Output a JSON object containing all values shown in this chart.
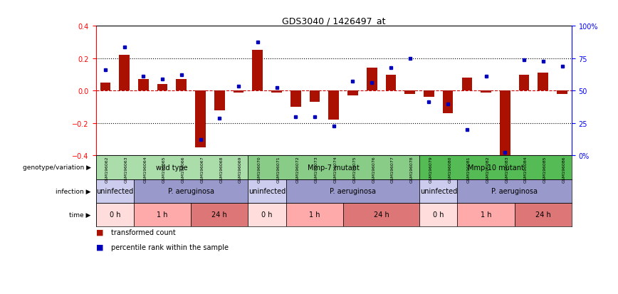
{
  "title": "GDS3040 / 1426497_at",
  "samples": [
    "GSM196062",
    "GSM196063",
    "GSM196064",
    "GSM196065",
    "GSM196066",
    "GSM196067",
    "GSM196068",
    "GSM196069",
    "GSM196070",
    "GSM196071",
    "GSM196072",
    "GSM196073",
    "GSM196074",
    "GSM196075",
    "GSM196076",
    "GSM196077",
    "GSM196078",
    "GSM196079",
    "GSM196080",
    "GSM196081",
    "GSM196082",
    "GSM196083",
    "GSM196084",
    "GSM196085",
    "GSM196086"
  ],
  "red_bars": [
    0.05,
    0.22,
    0.07,
    0.04,
    0.07,
    -0.35,
    -0.12,
    -0.01,
    0.25,
    -0.01,
    -0.1,
    -0.07,
    -0.18,
    -0.03,
    0.14,
    0.1,
    -0.02,
    -0.04,
    -0.14,
    0.08,
    -0.01,
    -0.42,
    0.1,
    0.11,
    -0.02
  ],
  "blue_dots": [
    0.13,
    0.27,
    0.09,
    0.07,
    0.1,
    -0.3,
    -0.17,
    0.03,
    0.3,
    0.02,
    -0.16,
    -0.16,
    -0.22,
    0.06,
    0.05,
    0.14,
    0.2,
    -0.07,
    -0.08,
    -0.24,
    0.09,
    -0.38,
    0.19,
    0.18,
    0.15
  ],
  "ylim": [
    -0.4,
    0.4
  ],
  "genotype_groups": [
    {
      "label": "wild type",
      "start": 0,
      "end": 8,
      "color": "#aaddaa"
    },
    {
      "label": "Mmp-7 mutant",
      "start": 8,
      "end": 17,
      "color": "#88cc88"
    },
    {
      "label": "Mmp-10 mutant",
      "start": 17,
      "end": 25,
      "color": "#55bb55"
    }
  ],
  "infection_groups": [
    {
      "label": "uninfected",
      "start": 0,
      "end": 2,
      "color": "#ccccee"
    },
    {
      "label": "P. aeruginosa",
      "start": 2,
      "end": 8,
      "color": "#9999cc"
    },
    {
      "label": "uninfected",
      "start": 8,
      "end": 10,
      "color": "#ccccee"
    },
    {
      "label": "P. aeruginosa",
      "start": 10,
      "end": 17,
      "color": "#9999cc"
    },
    {
      "label": "uninfected",
      "start": 17,
      "end": 19,
      "color": "#ccccee"
    },
    {
      "label": "P. aeruginosa",
      "start": 19,
      "end": 25,
      "color": "#9999cc"
    }
  ],
  "time_groups": [
    {
      "label": "0 h",
      "start": 0,
      "end": 2,
      "color": "#ffdddd"
    },
    {
      "label": "1 h",
      "start": 2,
      "end": 5,
      "color": "#ffaaaa"
    },
    {
      "label": "24 h",
      "start": 5,
      "end": 8,
      "color": "#dd7777"
    },
    {
      "label": "0 h",
      "start": 8,
      "end": 10,
      "color": "#ffdddd"
    },
    {
      "label": "1 h",
      "start": 10,
      "end": 13,
      "color": "#ffaaaa"
    },
    {
      "label": "24 h",
      "start": 13,
      "end": 17,
      "color": "#dd7777"
    },
    {
      "label": "0 h",
      "start": 17,
      "end": 19,
      "color": "#ffdddd"
    },
    {
      "label": "1 h",
      "start": 19,
      "end": 22,
      "color": "#ffaaaa"
    },
    {
      "label": "24 h",
      "start": 22,
      "end": 25,
      "color": "#dd7777"
    }
  ],
  "bar_color": "#aa1100",
  "dot_color": "#0000bb",
  "bg_color": "#ffffff",
  "tick_bg_color": "#dddddd",
  "legend_items": [
    {
      "color": "#aa1100",
      "label": "transformed count"
    },
    {
      "color": "#0000bb",
      "label": "percentile rank within the sample"
    }
  ]
}
